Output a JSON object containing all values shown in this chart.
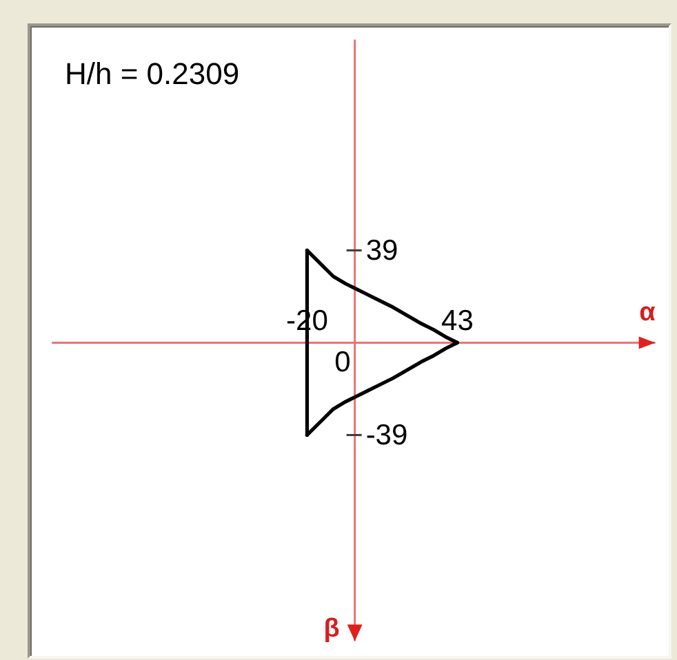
{
  "chart_data": {
    "type": "line",
    "title": "H/h = 0.2309",
    "xlabel": "α",
    "ylabel": "β",
    "series": [
      {
        "color": "#000000",
        "x": [
          -20,
          -15,
          -9,
          -4,
          0,
          5,
          10,
          16,
          22,
          28,
          33,
          38,
          43
        ],
        "values": [
          39,
          34,
          28,
          25,
          23,
          20.5,
          18,
          15,
          11.5,
          8,
          5.5,
          2.5,
          0
        ]
      },
      {
        "color": "#000000",
        "x": [
          -20,
          -15,
          -9,
          -4,
          0,
          5,
          10,
          16,
          22,
          28,
          33,
          38,
          43
        ],
        "values": [
          -39,
          -34,
          -28,
          -25,
          -23,
          -20.5,
          -18,
          -15,
          -11.5,
          -8,
          -5.5,
          -2.5,
          0
        ]
      },
      {
        "color": "#000000",
        "x": [
          -20,
          -20
        ],
        "values": [
          -39,
          39
        ]
      }
    ],
    "xlim": [
      -127,
      126
    ],
    "ylim": [
      -126,
      128
    ],
    "xticks": [
      -20,
      43
    ],
    "yticks": [
      -39,
      39
    ],
    "annotations": [
      "0"
    ],
    "grid": false,
    "legend": false,
    "marker": "none",
    "line_style": "solid"
  }
}
